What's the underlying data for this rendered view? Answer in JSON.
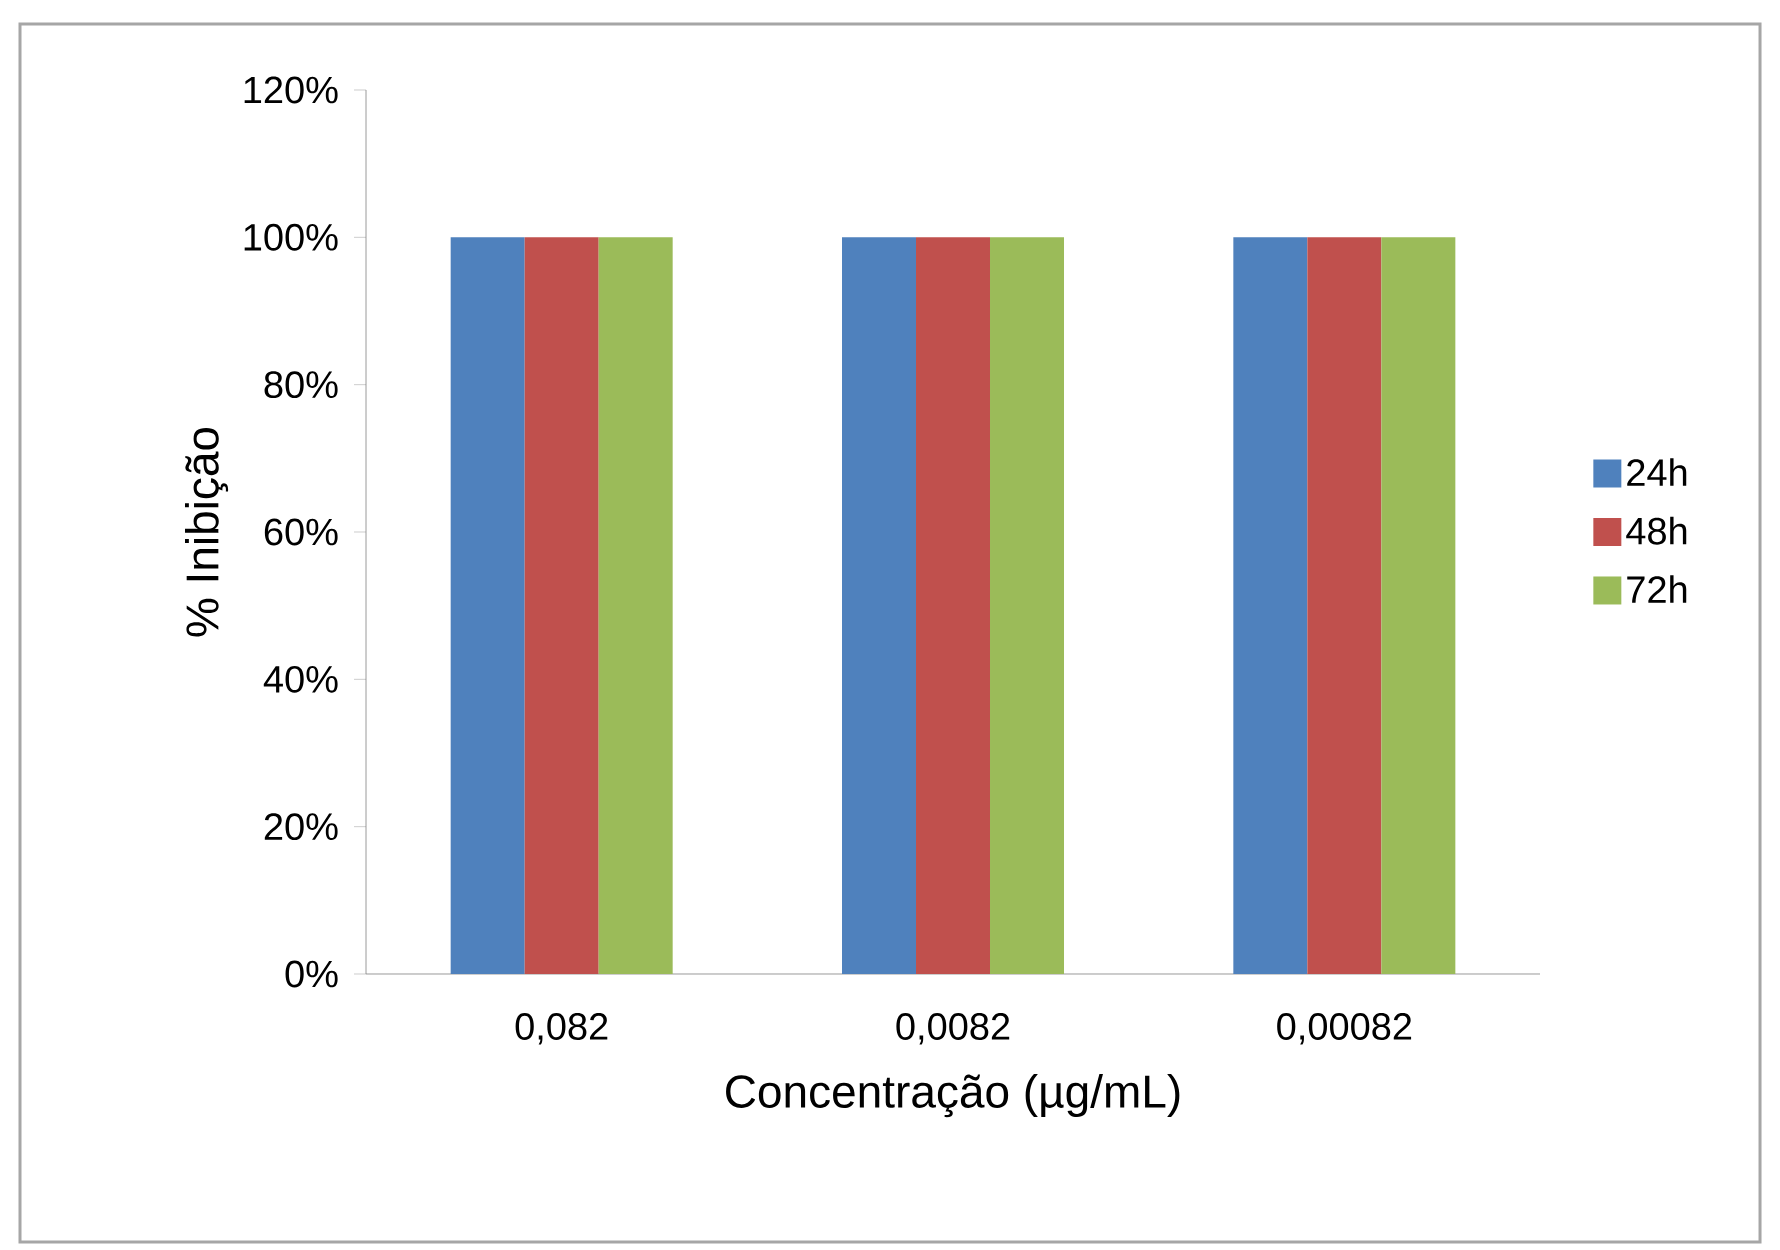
{
  "chart_data": {
    "type": "bar",
    "xlabel": "Concentração (µg/mL)",
    "ylabel": "% Inibição",
    "categories": [
      "0,082",
      "0,0082",
      "0,00082"
    ],
    "series": [
      {
        "name": "24h",
        "color": "#4f81bd",
        "values": [
          100,
          100,
          100
        ]
      },
      {
        "name": "48h",
        "color": "#c0504d",
        "values": [
          100,
          100,
          100
        ]
      },
      {
        "name": "72h",
        "color": "#9bbb59",
        "values": [
          100,
          100,
          100
        ]
      }
    ],
    "ylim": [
      0,
      120
    ],
    "yticks": [
      {
        "value": 0,
        "label": "0%"
      },
      {
        "value": 20,
        "label": "20%"
      },
      {
        "value": 40,
        "label": "40%"
      },
      {
        "value": 60,
        "label": "60%"
      },
      {
        "value": 80,
        "label": "80%"
      },
      {
        "value": 100,
        "label": "100%"
      },
      {
        "value": 120,
        "label": "120%"
      }
    ],
    "grid": false,
    "legend": "right"
  }
}
